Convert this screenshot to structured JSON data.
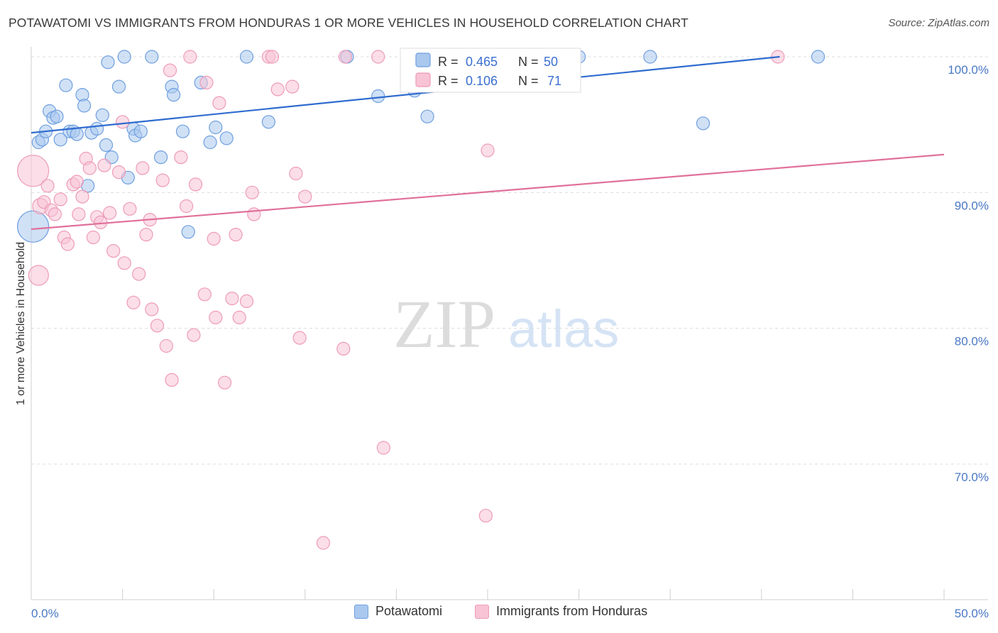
{
  "title": "POTAWATOMI VS IMMIGRANTS FROM HONDURAS 1 OR MORE VEHICLES IN HOUSEHOLD CORRELATION CHART",
  "source": "Source: ZipAtlas.com",
  "watermark": {
    "zip": "ZIP",
    "atlas": "atlas"
  },
  "chart_data": {
    "type": "scatter",
    "ylabel": "1 or more Vehicles in Household",
    "xlim": [
      0,
      50
    ],
    "ylim": [
      60.5,
      103.5
    ],
    "x_tick_labels": [
      "0.0%",
      "50.0%"
    ],
    "y_ticks": [
      70,
      80,
      90,
      100
    ],
    "y_tick_labels": [
      "70.0%",
      "80.0%",
      "90.0%",
      "100.0%"
    ],
    "grid": "horizontal dashed",
    "legend_position": "top-center",
    "legend": [
      {
        "r_label": "R =",
        "r_value": "0.465",
        "n_label": "N =",
        "n_value": "50"
      },
      {
        "r_label": "R =",
        "r_value": "0.106",
        "n_label": "N =",
        "n_value": "71"
      }
    ],
    "series": [
      {
        "name": "Potawatomi",
        "color": "#6f9fdf",
        "fill": "#aac8ee",
        "line_color": "#2f6ccf",
        "trend": {
          "x": [
            0,
            41
          ],
          "y": [
            94.4,
            100.0
          ]
        },
        "points": [
          [
            0.1,
            87.5,
            22
          ],
          [
            0.4,
            93.7,
            9
          ],
          [
            0.6,
            93.9,
            9
          ],
          [
            0.8,
            94.5,
            9
          ],
          [
            1.0,
            96.0,
            9
          ],
          [
            1.2,
            95.5,
            9
          ],
          [
            1.4,
            95.6,
            9
          ],
          [
            1.6,
            93.9,
            9
          ],
          [
            1.9,
            97.9,
            9
          ],
          [
            2.1,
            94.5,
            9
          ],
          [
            2.3,
            94.5,
            9
          ],
          [
            2.5,
            94.3,
            9
          ],
          [
            2.8,
            97.2,
            9
          ],
          [
            2.9,
            96.4,
            9
          ],
          [
            3.1,
            90.5,
            9
          ],
          [
            3.3,
            94.4,
            9
          ],
          [
            3.6,
            94.7,
            9
          ],
          [
            3.9,
            95.7,
            9
          ],
          [
            4.1,
            93.5,
            9
          ],
          [
            4.2,
            99.6,
            9
          ],
          [
            4.4,
            92.6,
            9
          ],
          [
            4.8,
            97.8,
            9
          ],
          [
            5.1,
            100.0,
            9
          ],
          [
            5.3,
            91.1,
            9
          ],
          [
            5.6,
            94.7,
            9
          ],
          [
            5.7,
            94.2,
            9
          ],
          [
            6.0,
            94.5,
            9
          ],
          [
            6.6,
            100.0,
            9
          ],
          [
            7.1,
            92.6,
            9
          ],
          [
            7.7,
            97.8,
            9
          ],
          [
            7.8,
            97.2,
            9
          ],
          [
            8.3,
            94.5,
            9
          ],
          [
            8.6,
            87.1,
            9
          ],
          [
            9.3,
            98.1,
            9
          ],
          [
            9.8,
            93.7,
            9
          ],
          [
            10.1,
            94.8,
            9
          ],
          [
            10.7,
            94.0,
            9
          ],
          [
            11.8,
            100.0,
            9
          ],
          [
            13.0,
            95.2,
            9
          ],
          [
            17.3,
            100.0,
            9
          ],
          [
            19.0,
            97.1,
            9
          ],
          [
            21.0,
            97.5,
            9
          ],
          [
            21.7,
            95.6,
            9
          ],
          [
            23.2,
            100.0,
            9
          ],
          [
            25.0,
            100.0,
            9
          ],
          [
            26.5,
            100.0,
            9
          ],
          [
            30.0,
            100.0,
            9
          ],
          [
            33.9,
            100.0,
            9
          ],
          [
            36.8,
            95.1,
            9
          ],
          [
            43.1,
            100.0,
            9
          ]
        ]
      },
      {
        "name": "Immigrants from Honduras",
        "color": "#ee9bb8",
        "fill": "#f7c3d5",
        "line_color": "#e0709a",
        "trend": {
          "x": [
            0,
            50
          ],
          "y": [
            87.3,
            92.8
          ]
        },
        "points": [
          [
            0.1,
            91.6,
            22
          ],
          [
            0.4,
            83.9,
            14
          ],
          [
            0.5,
            89.0,
            11
          ],
          [
            0.7,
            89.3,
            9
          ],
          [
            0.9,
            90.5,
            9
          ],
          [
            1.1,
            88.7,
            9
          ],
          [
            1.3,
            88.4,
            9
          ],
          [
            1.6,
            89.5,
            9
          ],
          [
            1.8,
            86.7,
            9
          ],
          [
            2.0,
            86.2,
            9
          ],
          [
            2.3,
            90.6,
            9
          ],
          [
            2.5,
            90.8,
            9
          ],
          [
            2.6,
            88.4,
            9
          ],
          [
            2.8,
            89.7,
            9
          ],
          [
            3.0,
            92.5,
            9
          ],
          [
            3.2,
            91.8,
            9
          ],
          [
            3.4,
            86.7,
            9
          ],
          [
            3.6,
            88.2,
            9
          ],
          [
            3.8,
            87.8,
            9
          ],
          [
            4.0,
            92.0,
            9
          ],
          [
            4.3,
            88.5,
            9
          ],
          [
            4.5,
            85.7,
            9
          ],
          [
            4.8,
            91.5,
            9
          ],
          [
            5.0,
            95.2,
            9
          ],
          [
            5.1,
            84.8,
            9
          ],
          [
            5.4,
            88.8,
            9
          ],
          [
            5.6,
            81.9,
            9
          ],
          [
            5.9,
            84.0,
            9
          ],
          [
            6.1,
            91.8,
            9
          ],
          [
            6.3,
            86.9,
            9
          ],
          [
            6.5,
            88.0,
            9
          ],
          [
            6.6,
            81.4,
            9
          ],
          [
            6.9,
            80.2,
            9
          ],
          [
            7.2,
            90.9,
            9
          ],
          [
            7.4,
            78.7,
            9
          ],
          [
            7.6,
            99.0,
            9
          ],
          [
            7.7,
            76.2,
            9
          ],
          [
            8.2,
            92.6,
            9
          ],
          [
            8.5,
            89.0,
            9
          ],
          [
            8.7,
            100.0,
            9
          ],
          [
            8.9,
            79.5,
            9
          ],
          [
            9.0,
            90.6,
            9
          ],
          [
            9.5,
            82.5,
            9
          ],
          [
            9.6,
            98.1,
            9
          ],
          [
            10.0,
            86.6,
            9
          ],
          [
            10.1,
            80.8,
            9
          ],
          [
            10.3,
            96.6,
            9
          ],
          [
            10.6,
            76.0,
            9
          ],
          [
            11.0,
            82.2,
            9
          ],
          [
            11.2,
            86.9,
            9
          ],
          [
            11.4,
            80.8,
            9
          ],
          [
            11.8,
            82.0,
            9
          ],
          [
            12.1,
            90.0,
            9
          ],
          [
            12.2,
            88.4,
            9
          ],
          [
            13.0,
            100.0,
            9
          ],
          [
            13.2,
            100.0,
            9
          ],
          [
            13.5,
            97.6,
            9
          ],
          [
            14.3,
            97.8,
            9
          ],
          [
            14.5,
            91.4,
            9
          ],
          [
            14.7,
            79.3,
            9
          ],
          [
            15.0,
            89.7,
            9
          ],
          [
            16.0,
            64.2,
            9
          ],
          [
            17.1,
            78.5,
            9
          ],
          [
            17.2,
            100.0,
            9
          ],
          [
            19.0,
            100.0,
            9
          ],
          [
            19.3,
            71.2,
            9
          ],
          [
            22.8,
            100.0,
            9
          ],
          [
            25.0,
            100.0,
            9
          ],
          [
            24.9,
            66.2,
            9
          ],
          [
            25.0,
            93.1,
            9
          ],
          [
            40.9,
            100.0,
            9
          ]
        ]
      }
    ]
  }
}
